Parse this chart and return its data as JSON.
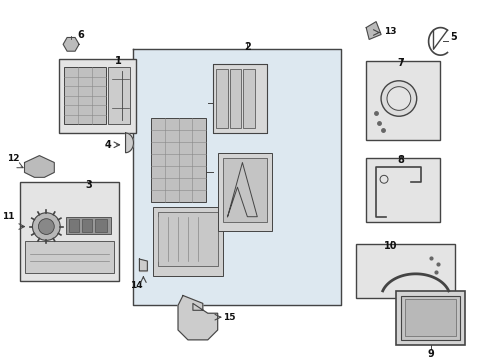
{
  "background_color": "#ffffff",
  "fig_width": 4.89,
  "fig_height": 3.6,
  "dpi": 100,
  "line_color": "#444444",
  "fill_color": "#e8e8e8",
  "box_fill": "#e4e4e4",
  "dark_fill": "#c0c0c0"
}
